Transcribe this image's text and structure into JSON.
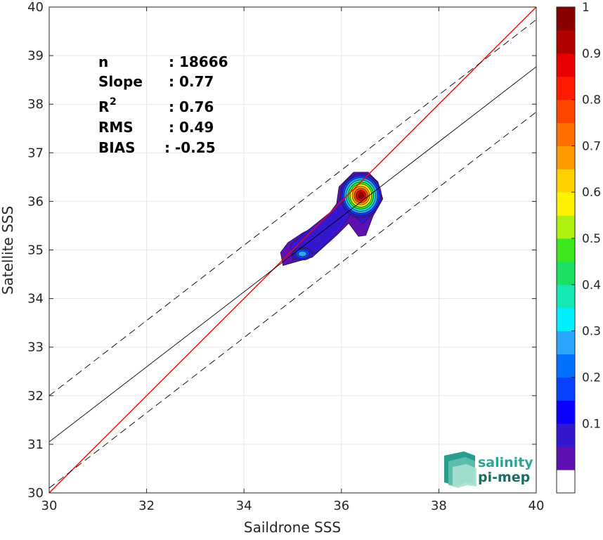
{
  "chart_data": {
    "type": "scatter",
    "subtype": "density-contour",
    "title": "",
    "xlabel": "Saildrone SSS",
    "ylabel": "Satellite SSS",
    "xlim": [
      30,
      40
    ],
    "ylim": [
      30,
      40
    ],
    "xticks": [
      "30",
      "32",
      "34",
      "36",
      "38",
      "40"
    ],
    "yticks": [
      "30",
      "31",
      "32",
      "33",
      "34",
      "35",
      "36",
      "37",
      "38",
      "39",
      "40"
    ],
    "grid": true,
    "lines": [
      {
        "name": "",
        "style": "solid",
        "color": "#ff0000",
        "x": [
          30,
          40
        ],
        "y": [
          30,
          40
        ]
      },
      {
        "name": "",
        "style": "solid",
        "color": "#000000",
        "x": [
          30,
          40
        ],
        "y": [
          31.05,
          38.77
        ]
      },
      {
        "name": "",
        "style": "dashed",
        "color": "#000000",
        "x": [
          30,
          40
        ],
        "y": [
          32.0,
          39.74
        ]
      },
      {
        "name": "",
        "style": "dashed",
        "color": "#000000",
        "x": [
          30,
          40
        ],
        "y": [
          30.1,
          37.84
        ]
      }
    ],
    "density_peaks": [
      {
        "x": 36.4,
        "y": 36.12,
        "peak": 1.0
      },
      {
        "x": 35.2,
        "y": 34.92,
        "peak": 0.3
      }
    ],
    "stats": [
      {
        "label": "n",
        "value": ": 18666"
      },
      {
        "label": "Slope",
        "value": ": 0.77"
      },
      {
        "label": "R",
        "sup": "2",
        "value": ": 0.76"
      },
      {
        "label": "RMS",
        "value": ": 0.49"
      },
      {
        "label": "BIAS",
        "value": ": -0.25"
      }
    ],
    "colorbar": {
      "min": 0,
      "max": 1,
      "ticks": [
        "0.1",
        "0.2",
        "0.3",
        "0.4",
        "0.5",
        "0.6",
        "0.7",
        "0.8",
        "0.9",
        "1"
      ],
      "colors": [
        "#ffffff",
        "#5e0fb4",
        "#3318d0",
        "#0a00ff",
        "#0842ff",
        "#0070ff",
        "#2aa6ff",
        "#00f0ff",
        "#16e8b4",
        "#18e060",
        "#3ce81c",
        "#aef010",
        "#fff200",
        "#ffd200",
        "#ff9a00",
        "#ff7000",
        "#ff4600",
        "#ff1a00",
        "#e80000",
        "#b00000",
        "#8a0000"
      ]
    }
  },
  "logo": {
    "line1": "salinity",
    "line2": "pi-mep"
  }
}
